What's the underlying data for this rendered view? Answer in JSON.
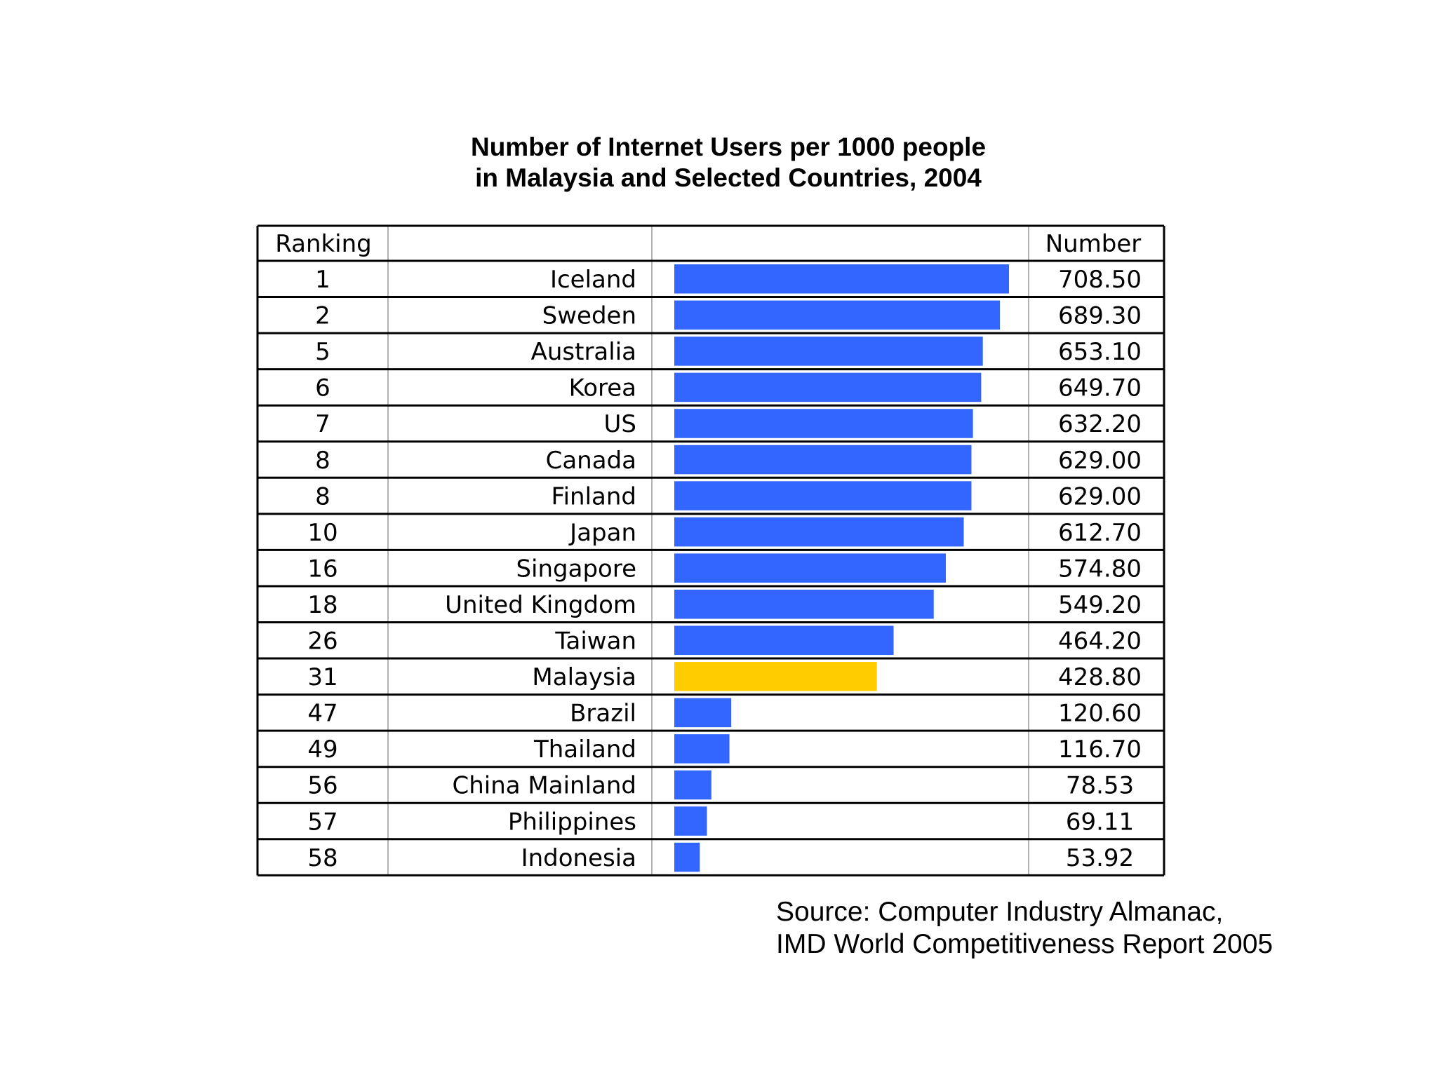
{
  "chart_data": {
    "type": "bar",
    "title_lines": [
      "Number of Internet Users per 1000 people",
      "in Malaysia and Selected Countries, 2004"
    ],
    "columns": {
      "rank": "Ranking",
      "country": "",
      "bar": "",
      "value": "Number"
    },
    "xlim": [
      0,
      708.5
    ],
    "grid": false,
    "legend": "none",
    "rows": [
      {
        "rank": "1",
        "country": "Iceland",
        "value": 708.5,
        "label": "708.50",
        "color": "#3366ff"
      },
      {
        "rank": "2",
        "country": "Sweden",
        "value": 689.3,
        "label": "689.30",
        "color": "#3366ff"
      },
      {
        "rank": "5",
        "country": "Australia",
        "value": 653.1,
        "label": "653.10",
        "color": "#3366ff"
      },
      {
        "rank": "6",
        "country": "Korea",
        "value": 649.7,
        "label": "649.70",
        "color": "#3366ff"
      },
      {
        "rank": "7",
        "country": "US",
        "value": 632.2,
        "label": "632.20",
        "color": "#3366ff"
      },
      {
        "rank": "8",
        "country": "Canada",
        "value": 629.0,
        "label": "629.00",
        "color": "#3366ff"
      },
      {
        "rank": "8",
        "country": "Finland",
        "value": 629.0,
        "label": "629.00",
        "color": "#3366ff"
      },
      {
        "rank": "10",
        "country": "Japan",
        "value": 612.7,
        "label": "612.70",
        "color": "#3366ff"
      },
      {
        "rank": "16",
        "country": "Singapore",
        "value": 574.8,
        "label": "574.80",
        "color": "#3366ff"
      },
      {
        "rank": "18",
        "country": "United Kingdom",
        "value": 549.2,
        "label": "549.20",
        "color": "#3366ff"
      },
      {
        "rank": "26",
        "country": "Taiwan",
        "value": 464.2,
        "label": "464.20",
        "color": "#3366ff"
      },
      {
        "rank": "31",
        "country": "Malaysia",
        "value": 428.8,
        "label": "428.80",
        "color": "#ffcc00"
      },
      {
        "rank": "47",
        "country": "Brazil",
        "value": 120.6,
        "label": "120.60",
        "color": "#3366ff"
      },
      {
        "rank": "49",
        "country": "Thailand",
        "value": 116.7,
        "label": "116.70",
        "color": "#3366ff"
      },
      {
        "rank": "56",
        "country": "China Mainland",
        "value": 78.53,
        "label": "78.53",
        "color": "#3366ff"
      },
      {
        "rank": "57",
        "country": "Philippines",
        "value": 69.11,
        "label": "69.11",
        "color": "#3366ff"
      },
      {
        "rank": "58",
        "country": "Indonesia",
        "value": 53.92,
        "label": "53.92",
        "color": "#3366ff"
      }
    ]
  },
  "source_lines": [
    "Source: Computer Industry Almanac,",
    "IMD World Competitiveness Report 2005"
  ]
}
